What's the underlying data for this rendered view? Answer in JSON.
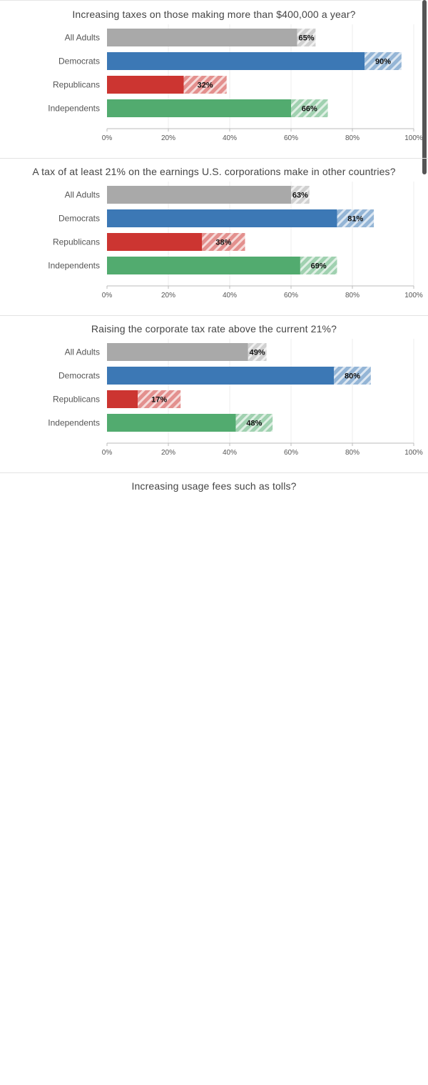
{
  "colors": {
    "all_adults": "#a9a9a9",
    "democrats": "#3c78b5",
    "republicans": "#cc3531",
    "independents": "#52ab6f"
  },
  "chart_data": [
    {
      "type": "bar",
      "orientation": "horizontal",
      "title": "Increasing taxes on those making more than $400,000 a year?",
      "categories": [
        "All Adults",
        "Democrats",
        "Republicans",
        "Independents"
      ],
      "values": [
        65,
        90,
        32,
        66
      ],
      "value_labels": [
        "65%",
        "90%",
        "32%",
        "66%"
      ],
      "error_low": [
        62,
        84,
        25,
        60
      ],
      "error_high": [
        68,
        96,
        39,
        72
      ],
      "xlim": [
        0,
        100
      ],
      "x_ticks": [
        "0%",
        "20%",
        "40%",
        "60%",
        "80%",
        "100%"
      ],
      "grid": true
    },
    {
      "type": "bar",
      "orientation": "horizontal",
      "title": "A tax of at least 21% on the earnings U.S. corporations make in other countries?",
      "categories": [
        "All Adults",
        "Democrats",
        "Republicans",
        "Independents"
      ],
      "values": [
        63,
        81,
        38,
        69
      ],
      "value_labels": [
        "63%",
        "81%",
        "38%",
        "69%"
      ],
      "error_low": [
        60,
        75,
        31,
        63
      ],
      "error_high": [
        66,
        87,
        45,
        75
      ],
      "xlim": [
        0,
        100
      ],
      "x_ticks": [
        "0%",
        "20%",
        "40%",
        "60%",
        "80%",
        "100%"
      ],
      "grid": true
    },
    {
      "type": "bar",
      "orientation": "horizontal",
      "title": "Raising the corporate tax rate above the current 21%?",
      "categories": [
        "All Adults",
        "Democrats",
        "Republicans",
        "Independents"
      ],
      "values": [
        49,
        80,
        17,
        48
      ],
      "value_labels": [
        "49%",
        "80%",
        "17%",
        "48%"
      ],
      "error_low": [
        46,
        74,
        10,
        42
      ],
      "error_high": [
        52,
        86,
        24,
        54
      ],
      "xlim": [
        0,
        100
      ],
      "x_ticks": [
        "0%",
        "20%",
        "40%",
        "60%",
        "80%",
        "100%"
      ],
      "grid": true
    }
  ],
  "next_chart": {
    "title": "Increasing usage fees such as tolls?"
  }
}
